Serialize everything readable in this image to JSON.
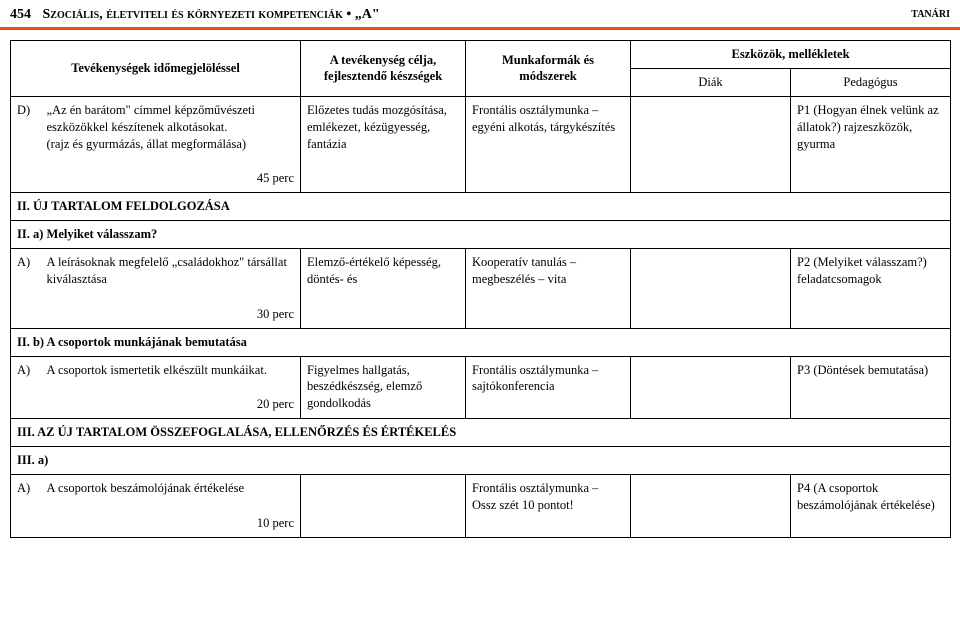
{
  "header": {
    "page_num": "454",
    "title": "Szociális, életviteli és környezeti kompetenciák • „A\"",
    "right": "tanári"
  },
  "thead": {
    "c1": "",
    "c2": "Tevékenységek időmegjelöléssel",
    "c3": "A tevékenység célja, fejlesztendő készségek",
    "c4": "Munkaformák és módszerek",
    "c5_group": "Eszközök, mellékletek",
    "c5a": "Diák",
    "c5b": "Pedagógus"
  },
  "rows": {
    "d": {
      "label": "D)",
      "activity": "„Az én barátom\" címmel képzőművészeti eszközökkel készítenek alkotásokat.\n(rajz és gyurmázás, állat megformálása)",
      "duration": "45 perc",
      "goal": "Előzetes tudás mozgósítása, emlékezet, kézügyesség, fantázia",
      "method": "Frontális osztálymunka – egyéni alkotás, tárgykészítés",
      "diak": "",
      "ped": "P1 (Hogyan élnek velünk az állatok?) rajzeszközök, gyurma"
    },
    "sec_ii": {
      "text": "II. ÚJ TARTALOM FELDOLGOZÁSA"
    },
    "sec_iia": {
      "text": "II. a) Melyiket válasszam?"
    },
    "a1": {
      "label": "A)",
      "activity": "A leírásoknak megfelelő „családokhoz\" társállat kiválasztása",
      "duration": "30 perc",
      "goal": "Elemző-értékelő képesség, döntés- és",
      "method": "Kooperatív tanulás – megbeszélés – vita",
      "diak": "",
      "ped": "P2 (Melyiket válasszam?) feladatcsomagok"
    },
    "sec_iib": {
      "text": "II. b) A csoportok munkájának bemutatása"
    },
    "a2": {
      "label": "A)",
      "activity": "A csoportok ismertetik elkészült munkáikat.",
      "duration": "20 perc",
      "goal": "Figyelmes hallgatás, beszédkészség, elemző gondolkodás",
      "method": "Frontális osztálymunka – sajtókonferencia",
      "diak": "",
      "ped": "P3 (Döntések bemutatása)"
    },
    "sec_iii": {
      "text": "III. AZ ÚJ TARTALOM ÖSSZEFOGLALÁSA, ELLENŐRZÉS ÉS ÉRTÉKELÉS"
    },
    "sec_iiia": {
      "text": "III. a)"
    },
    "a3": {
      "label": "A)",
      "activity": "A csoportok beszámolójának értékelése",
      "duration": "10 perc",
      "goal": "",
      "method": "Frontális osztálymunka – Ossz szét 10 pontot!",
      "diak": "",
      "ped": "P4 (A csoportok beszámolójának értékelése)"
    }
  }
}
